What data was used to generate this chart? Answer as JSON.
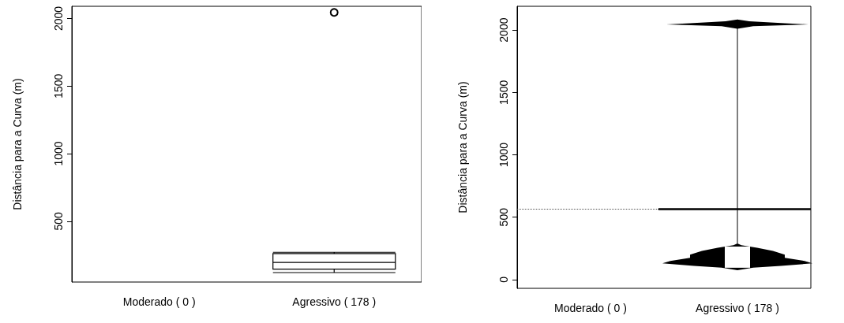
{
  "chart_data": [
    {
      "type": "box",
      "ylabel": "Distância para a Curva (m)",
      "categories": [
        "Moderado ( 0 )",
        "Agressivo ( 178 )"
      ],
      "ylim": [
        50,
        2090
      ],
      "yticks": [
        500,
        1000,
        1500,
        2000
      ],
      "boxes": [
        null,
        {
          "low": 120,
          "q1": 145,
          "median": 195,
          "q3": 260,
          "high": 270,
          "outliers": [
            2045
          ]
        }
      ]
    },
    {
      "type": "scatter",
      "ylabel": "Distância para a Curva (m)",
      "categories": [
        "Moderado ( 0 )",
        "Agressivo ( 178 )"
      ],
      "ylim": [
        -70,
        2190
      ],
      "yticks": [
        0,
        500,
        1000,
        1500,
        2000
      ],
      "ref_lines": [
        {
          "axis": "y",
          "value": 565,
          "line_style": "dotted",
          "color": "#555555"
        },
        {
          "axis": "y",
          "value": 565,
          "line_style": "solid",
          "color": "#000000"
        }
      ]
    }
  ]
}
